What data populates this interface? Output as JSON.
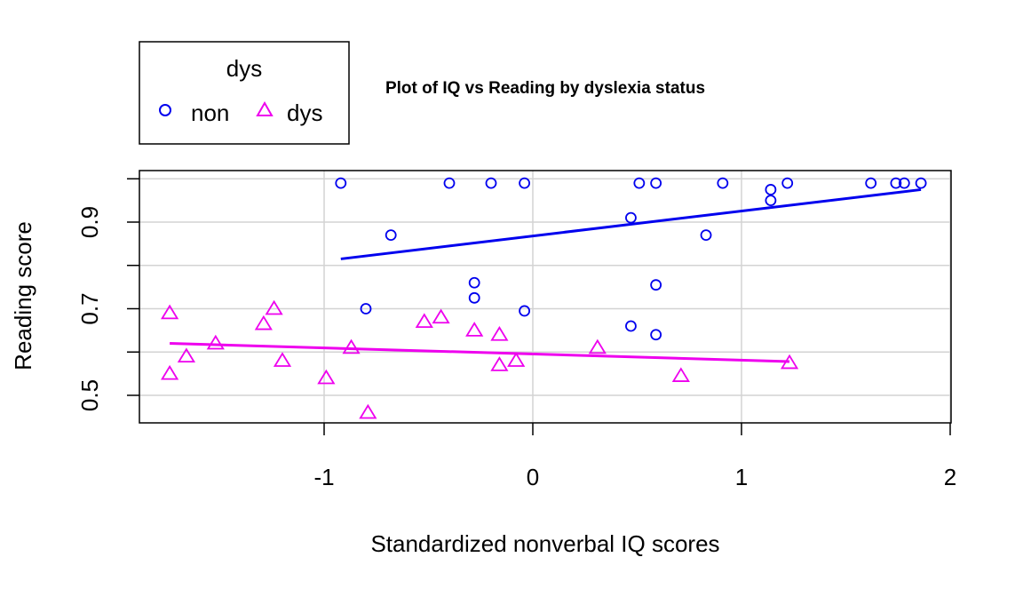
{
  "chart_data": {
    "type": "scatter",
    "title": "Plot of IQ vs Reading by dyslexia status",
    "xlabel": "Standardized nonverbal IQ scores",
    "ylabel": "Reading score",
    "xlim": [
      -1.88,
      2.0
    ],
    "ylim": [
      0.43,
      1.0
    ],
    "x_ticks": [
      -1,
      0,
      1,
      2
    ],
    "x_tick_labels": [
      "-1",
      "0",
      "1",
      "2"
    ],
    "y_ticks": [
      0.5,
      0.6,
      0.7,
      0.8,
      0.9,
      1.0
    ],
    "y_tick_labels": [
      "0.5",
      "",
      "0.7",
      "",
      "0.9",
      ""
    ],
    "x_grid": [
      -1,
      0,
      1,
      2
    ],
    "grid": true,
    "legend": {
      "title": "dys",
      "placement": "top-left",
      "entries": [
        "non",
        "dys"
      ]
    },
    "series": [
      {
        "name": "non",
        "color": "#0000ee",
        "marker": "circle",
        "x": [
          -0.92,
          -0.4,
          -0.2,
          -0.04,
          0.51,
          0.59,
          0.91,
          1.14,
          1.22,
          1.62,
          1.74,
          1.78,
          1.86,
          0.47,
          1.14,
          -0.68,
          0.83,
          -0.28,
          -0.28,
          0.59,
          -0.8,
          -0.04,
          0.47,
          0.59
        ],
        "y": [
          0.99,
          0.99,
          0.99,
          0.99,
          0.99,
          0.99,
          0.99,
          0.975,
          0.99,
          0.99,
          0.99,
          0.99,
          0.99,
          0.91,
          0.95,
          0.87,
          0.87,
          0.76,
          0.725,
          0.755,
          0.7,
          0.695,
          0.66,
          0.64
        ],
        "fit": {
          "x": [
            -0.92,
            1.86
          ],
          "y": [
            0.815,
            0.975
          ]
        }
      },
      {
        "name": "dys",
        "color": "#ee00ee",
        "marker": "triangle",
        "x": [
          -1.74,
          -1.66,
          -1.52,
          -1.29,
          -1.24,
          -1.2,
          -0.99,
          -0.87,
          -0.79,
          -0.52,
          -0.44,
          -0.28,
          -0.16,
          -0.16,
          -0.08,
          0.31,
          0.71,
          1.23,
          -1.74
        ],
        "y": [
          0.69,
          0.59,
          0.62,
          0.665,
          0.7,
          0.58,
          0.54,
          0.61,
          0.46,
          0.67,
          0.68,
          0.65,
          0.64,
          0.57,
          0.58,
          0.61,
          0.545,
          0.575,
          0.55
        ],
        "fit": {
          "x": [
            -1.74,
            1.23
          ],
          "y": [
            0.62,
            0.578
          ]
        }
      }
    ]
  }
}
